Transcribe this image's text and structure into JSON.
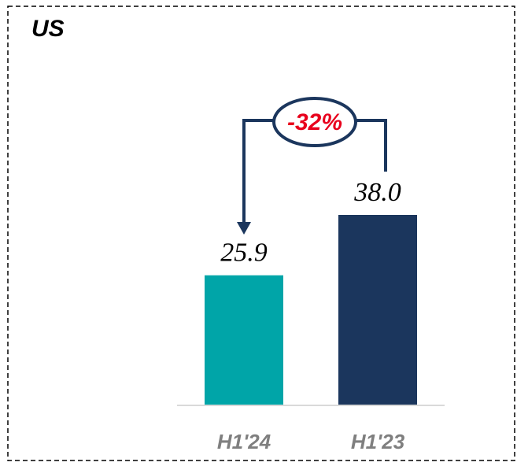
{
  "chart_data": {
    "type": "bar",
    "title": "US",
    "categories": [
      "H1'24",
      "H1'23"
    ],
    "values": [
      25.9,
      38.0
    ],
    "value_labels": [
      "25.9",
      "38.0"
    ],
    "colors": [
      "#00a5a8",
      "#1b365d"
    ],
    "ylim": [
      0,
      38
    ],
    "annotation": "-32%"
  }
}
